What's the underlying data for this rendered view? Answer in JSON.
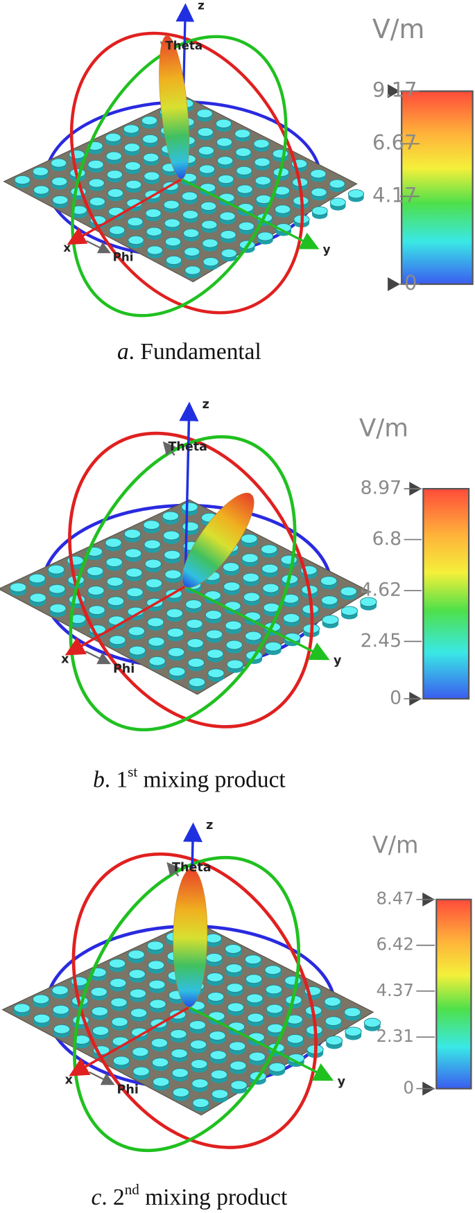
{
  "panels": [
    {
      "caption": [
        {
          "text": "a",
          "style": "italic"
        },
        {
          "text": ". Fundamental"
        }
      ],
      "colorbar": {
        "unit": "V/m",
        "range": [
          0,
          9.17
        ],
        "ticks": [
          0,
          4.17,
          6.67,
          9.17
        ]
      }
    },
    {
      "caption": [
        {
          "text": "b",
          "style": "italic"
        },
        {
          "text": ". 1"
        },
        {
          "text": "st",
          "style": "sup"
        },
        {
          "text": " mixing product"
        }
      ],
      "colorbar": {
        "unit": "V/m",
        "range": [
          0,
          8.97
        ],
        "ticks": [
          0,
          2.45,
          4.62,
          6.8,
          8.97
        ]
      }
    },
    {
      "caption": [
        {
          "text": "c",
          "style": "italic"
        },
        {
          "text": ". 2"
        },
        {
          "text": "nd",
          "style": "sup"
        },
        {
          "text": " mixing product"
        }
      ],
      "colorbar": {
        "unit": "V/m",
        "range": [
          0,
          8.47
        ],
        "ticks": [
          0,
          2.31,
          4.37,
          6.42,
          8.47
        ]
      }
    }
  ],
  "axis_labels": {
    "x": "x",
    "y": "y",
    "z": "z",
    "theta": "Theta",
    "phi": "Phi"
  }
}
